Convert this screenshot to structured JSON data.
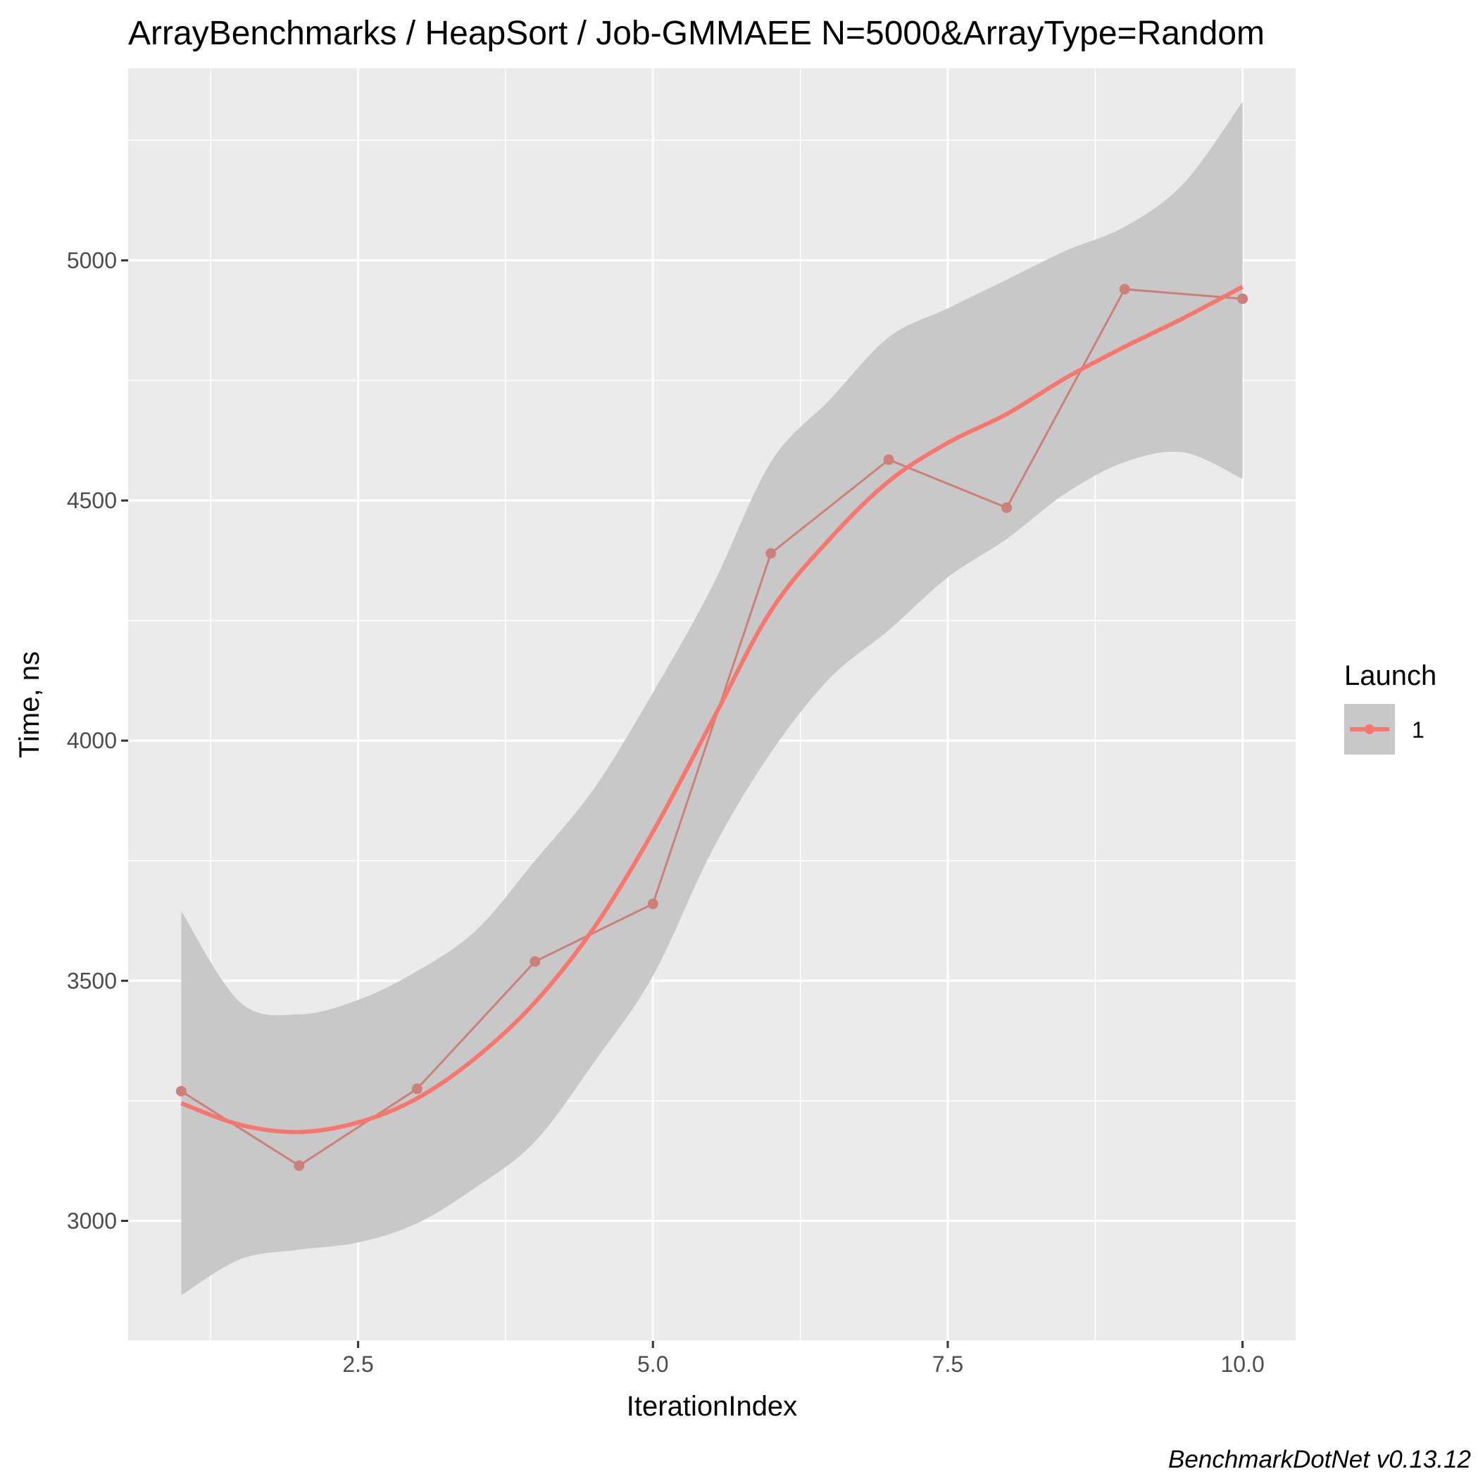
{
  "chart_data": {
    "type": "line",
    "title": "ArrayBenchmarks / HeapSort / Job-GMMAEE N=5000&ArrayType=Random",
    "xlabel": "IterationIndex",
    "ylabel": "Time, ns",
    "xlim": [
      0.55,
      10.45
    ],
    "ylim": [
      2750,
      5400
    ],
    "x_ticks": [
      2.5,
      5.0,
      7.5,
      10.0
    ],
    "x_tick_labels": [
      "2.5",
      "5.0",
      "7.5",
      "10.0"
    ],
    "y_ticks": [
      3000,
      3500,
      4000,
      4500,
      5000
    ],
    "y_tick_labels": [
      "3000",
      "3500",
      "4000",
      "4500",
      "5000"
    ],
    "grid": true,
    "legend": {
      "title": "Launch",
      "position": "right",
      "entries": [
        {
          "label": "1",
          "color": "#F8766D"
        }
      ]
    },
    "caption": "BenchmarkDotNet v0.13.12",
    "series": [
      {
        "name": "1",
        "type": "line+points",
        "color": "#CD7F7A",
        "x": [
          1,
          2,
          3,
          4,
          5,
          6,
          7,
          8,
          9,
          10
        ],
        "y": [
          3270,
          3115,
          3275,
          3540,
          3660,
          4390,
          4585,
          4485,
          4940,
          4920
        ]
      }
    ],
    "smooth": {
      "method": "loess",
      "color": "#F8766D",
      "ribbon_color": "#C8C8C8",
      "x": [
        1,
        1.5,
        2,
        2.5,
        3,
        3.5,
        4,
        4.5,
        5,
        5.5,
        6,
        6.5,
        7,
        7.5,
        8,
        8.5,
        9,
        9.5,
        10
      ],
      "y": [
        3245,
        3200,
        3185,
        3205,
        3255,
        3340,
        3455,
        3610,
        3810,
        4040,
        4270,
        4420,
        4540,
        4620,
        4680,
        4755,
        4820,
        4880,
        4945
      ],
      "ymin": [
        2845,
        2920,
        2940,
        2955,
        2995,
        3070,
        3165,
        3330,
        3510,
        3770,
        3975,
        4130,
        4230,
        4340,
        4420,
        4515,
        4580,
        4600,
        4545
      ],
      "ymax": [
        3645,
        3455,
        3430,
        3460,
        3520,
        3605,
        3750,
        3900,
        4100,
        4320,
        4580,
        4710,
        4840,
        4900,
        4960,
        5020,
        5070,
        5160,
        5330
      ]
    }
  }
}
